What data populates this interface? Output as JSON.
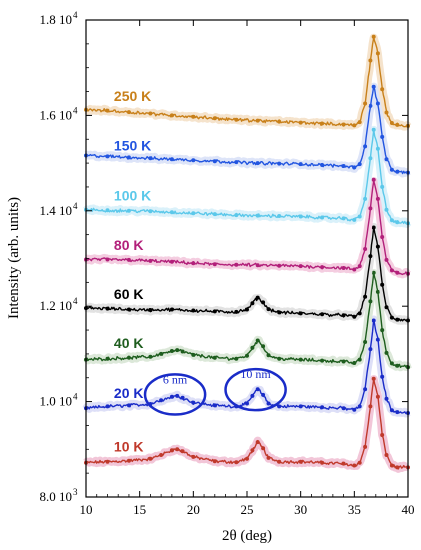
{
  "chart_data": {
    "type": "line",
    "xlabel": "2θ  (deg)",
    "ylabel": "Intensity (arb. units)",
    "xlim": [
      10,
      40
    ],
    "ylim": [
      8000,
      18000
    ],
    "grid": false,
    "x_ticks": [
      10,
      15,
      20,
      25,
      30,
      35,
      40
    ],
    "x_tick_labels": [
      "10",
      "15",
      "20",
      "25",
      "30",
      "35",
      "40"
    ],
    "y_ticks": [
      8000,
      10000,
      12000,
      14000,
      16000,
      18000
    ],
    "y_tick_labels": [
      {
        "mant": "8.0 10",
        "exp": "3"
      },
      {
        "mant": "1.0 10",
        "exp": "4"
      },
      {
        "mant": "1.2 10",
        "exp": "4"
      },
      {
        "mant": "1.4 10",
        "exp": "4"
      },
      {
        "mant": "1.6 10",
        "exp": "4"
      },
      {
        "mant": "1.8 10",
        "exp": "4"
      }
    ],
    "series": [
      {
        "name": "10 K",
        "color": "#c0392b",
        "shadow": "#f2c6d8",
        "label_x": 12.6,
        "label_y": 8950,
        "x": [
          10,
          12,
          14,
          16,
          17,
          18,
          18.5,
          19,
          20,
          22,
          24,
          25,
          25.5,
          26,
          26.5,
          27,
          28,
          30,
          32,
          34,
          35,
          35.5,
          36,
          36.5,
          36.8,
          37.2,
          37.6,
          38,
          38.5,
          39,
          40
        ],
        "values": [
          8720,
          8740,
          8760,
          8800,
          8880,
          8980,
          9000,
          8960,
          8840,
          8750,
          8730,
          8800,
          8980,
          9150,
          9020,
          8820,
          8740,
          8740,
          8720,
          8700,
          8660,
          8720,
          9050,
          9900,
          10480,
          10100,
          9300,
          8880,
          8660,
          8620,
          8620
        ]
      },
      {
        "name": "20 K",
        "color": "#1a2cc8",
        "shadow": "#dddff7",
        "label_x": 12.6,
        "label_y": 10080,
        "x": [
          10,
          12,
          14,
          16,
          17,
          18,
          18.5,
          19,
          20,
          22,
          24,
          25,
          25.5,
          26,
          26.5,
          27,
          28,
          30,
          32,
          34,
          35,
          35.5,
          36,
          36.5,
          36.8,
          37.2,
          37.6,
          38,
          38.5,
          39,
          40
        ],
        "values": [
          9860,
          9900,
          9920,
          9950,
          10030,
          10100,
          10120,
          10080,
          9980,
          9920,
          9900,
          9960,
          10120,
          10260,
          10140,
          9960,
          9900,
          9900,
          9880,
          9860,
          9830,
          9900,
          10260,
          11100,
          11700,
          11300,
          10520,
          10060,
          9820,
          9780,
          9760
        ]
      },
      {
        "name": "40 K",
        "color": "#1e5d1e",
        "shadow": "#dce8d9",
        "label_x": 12.6,
        "label_y": 11120,
        "x": [
          10,
          12,
          14,
          16,
          17,
          18,
          18.5,
          19,
          20,
          22,
          24,
          25,
          25.5,
          26,
          26.5,
          27,
          28,
          30,
          32,
          34,
          35,
          35.5,
          36,
          36.5,
          36.8,
          37.2,
          37.6,
          38,
          38.5,
          39,
          40
        ],
        "values": [
          10880,
          10900,
          10920,
          10940,
          11000,
          11060,
          11080,
          11050,
          10980,
          10920,
          10900,
          10960,
          11130,
          11280,
          11160,
          10970,
          10900,
          10880,
          10860,
          10840,
          10810,
          10880,
          11250,
          12100,
          12700,
          12300,
          11500,
          11020,
          10800,
          10750,
          10720
        ]
      },
      {
        "name": "60 K",
        "color": "#000000",
        "shadow": "#e2e2e2",
        "label_x": 12.6,
        "label_y": 12150,
        "x": [
          10,
          12,
          14,
          16,
          18,
          20,
          22,
          24,
          25,
          25.5,
          26,
          26.5,
          27,
          28,
          30,
          32,
          34,
          35,
          35.5,
          36,
          36.5,
          36.8,
          37.2,
          37.6,
          38,
          38.5,
          39,
          40
        ],
        "values": [
          11960,
          11950,
          11930,
          11920,
          11930,
          11910,
          11890,
          11880,
          11930,
          12060,
          12180,
          12080,
          11940,
          11870,
          11850,
          11830,
          11810,
          11780,
          11850,
          12200,
          13050,
          13650,
          13250,
          12450,
          11980,
          11760,
          11720,
          11700
        ]
      },
      {
        "name": "80 K",
        "color": "#b2207a",
        "shadow": "#f4cde0",
        "label_x": 12.6,
        "label_y": 13180,
        "x": [
          10,
          12,
          14,
          16,
          18,
          20,
          22,
          24,
          26,
          28,
          30,
          32,
          34,
          35,
          35.5,
          36,
          36.5,
          36.8,
          37.2,
          37.6,
          38,
          38.5,
          39,
          40
        ],
        "values": [
          12980,
          12980,
          12970,
          12950,
          12930,
          12900,
          12880,
          12870,
          12860,
          12850,
          12840,
          12820,
          12800,
          12770,
          12840,
          13200,
          14050,
          14650,
          14250,
          13450,
          12970,
          12750,
          12700,
          12680
        ]
      },
      {
        "name": "100 K",
        "color": "#5bc8ea",
        "shadow": "#daf1fa",
        "label_x": 12.6,
        "label_y": 14220,
        "x": [
          10,
          12,
          14,
          16,
          18,
          20,
          22,
          24,
          26,
          28,
          30,
          32,
          34,
          35,
          35.5,
          36,
          36.5,
          36.8,
          37.2,
          37.6,
          38,
          38.5,
          39,
          40
        ],
        "values": [
          14020,
          14010,
          14000,
          13990,
          13970,
          13950,
          13930,
          13910,
          13900,
          13890,
          13880,
          13860,
          13840,
          13810,
          13880,
          14250,
          15100,
          15700,
          15300,
          14500,
          14020,
          13800,
          13760,
          13740
        ]
      },
      {
        "name": "150 K",
        "color": "#2255e0",
        "shadow": "#dde4f8",
        "label_x": 12.6,
        "label_y": 15260,
        "x": [
          10,
          12,
          14,
          16,
          18,
          20,
          22,
          24,
          26,
          28,
          30,
          32,
          34,
          35,
          35.5,
          36,
          36.5,
          36.8,
          37.2,
          37.6,
          38,
          38.5,
          39,
          40
        ],
        "values": [
          15160,
          15140,
          15120,
          15100,
          15080,
          15060,
          15040,
          15020,
          15000,
          14990,
          14980,
          14960,
          14940,
          14910,
          14980,
          15350,
          16200,
          16600,
          16250,
          15550,
          15080,
          14860,
          14820,
          14800
        ]
      },
      {
        "name": "250 K",
        "color": "#c8801a",
        "shadow": "#f5e3cc",
        "label_x": 12.6,
        "label_y": 16300,
        "x": [
          10,
          12,
          14,
          16,
          18,
          20,
          22,
          24,
          26,
          28,
          30,
          32,
          34,
          35,
          35.5,
          36,
          36.5,
          36.8,
          37.2,
          37.6,
          38,
          38.5,
          39,
          40
        ],
        "values": [
          16120,
          16100,
          16070,
          16040,
          16000,
          15970,
          15940,
          15910,
          15890,
          15870,
          15850,
          15830,
          15810,
          15790,
          15860,
          16250,
          17150,
          17650,
          17300,
          16550,
          16060,
          15840,
          15800,
          15780
        ]
      }
    ],
    "annotations": [
      {
        "text": "6 nm",
        "cx": 18.3,
        "cy": 10150,
        "rx": 2.8,
        "ry": 420,
        "label_y": 10380
      },
      {
        "text": "10 nm",
        "cx": 25.8,
        "cy": 10250,
        "rx": 2.8,
        "ry": 430,
        "label_y": 10500
      }
    ]
  }
}
